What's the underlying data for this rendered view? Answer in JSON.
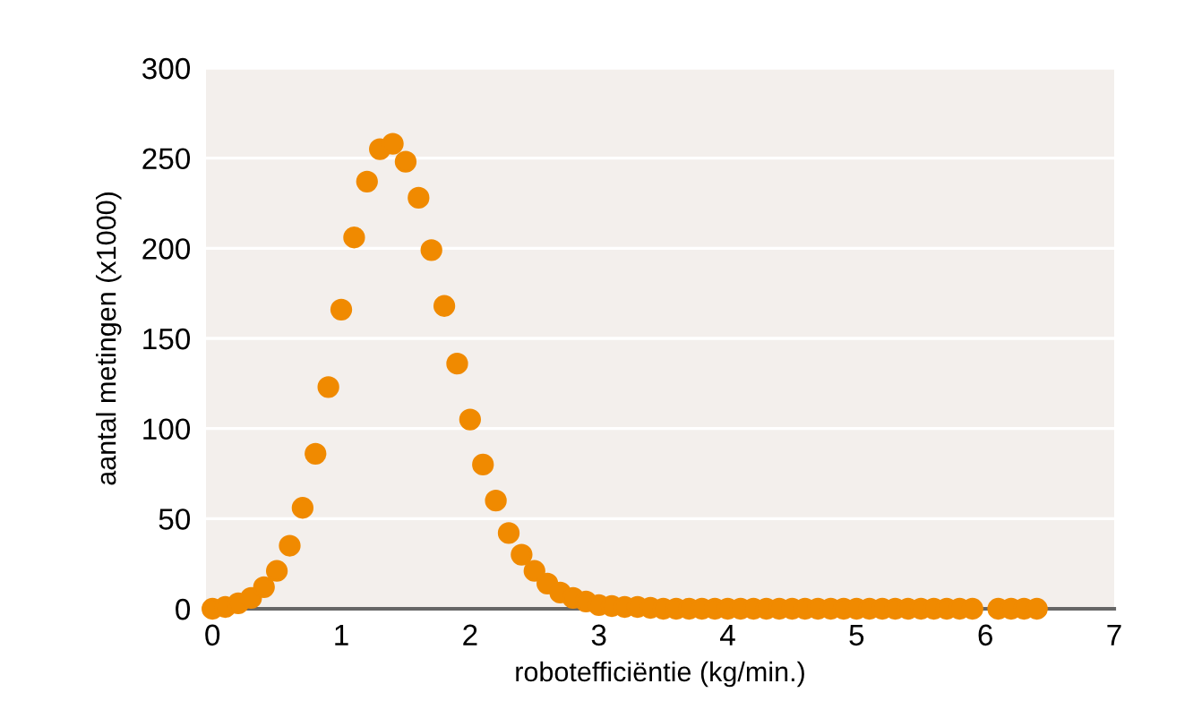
{
  "chart_data": {
    "type": "scatter",
    "xlabel": "robotefficiëntie (kg/min.)",
    "ylabel": "aantal metingen (x1000)",
    "x": [
      0,
      0.1,
      0.2,
      0.3,
      0.4,
      0.5,
      0.6,
      0.7,
      0.8,
      0.9,
      1.0,
      1.1,
      1.2,
      1.3,
      1.4,
      1.5,
      1.6,
      1.7,
      1.8,
      1.9,
      2.0,
      2.1,
      2.2,
      2.3,
      2.4,
      2.5,
      2.6,
      2.7,
      2.8,
      2.9,
      3.0,
      3.1,
      3.2,
      3.3,
      3.4,
      3.5,
      3.6,
      3.7,
      3.8,
      3.9,
      4.0,
      4.1,
      4.2,
      4.3,
      4.4,
      4.5,
      4.6,
      4.7,
      4.8,
      4.9,
      5.0,
      5.1,
      5.2,
      5.3,
      5.4,
      5.5,
      5.6,
      5.7,
      5.8,
      5.9,
      6.1,
      6.2,
      6.3,
      6.4
    ],
    "series": [
      {
        "color": "#f08a00",
        "values": [
          0,
          1,
          3,
          6,
          12,
          21,
          35,
          56,
          86,
          123,
          166,
          206,
          237,
          255,
          258,
          248,
          228,
          199,
          168,
          136,
          105,
          80,
          60,
          42,
          30,
          21,
          14,
          9,
          6,
          4,
          2,
          1.5,
          1,
          1,
          0.5,
          0,
          0,
          0,
          0,
          0,
          0,
          0,
          0,
          0,
          0,
          0,
          0,
          0,
          0,
          0,
          0,
          0,
          0,
          0,
          0,
          0,
          0,
          0,
          0,
          0,
          0,
          0,
          0,
          0
        ]
      }
    ],
    "xlim": [
      -0.05,
      7
    ],
    "ylim": [
      0,
      300
    ],
    "xticks": [
      0,
      1,
      2,
      3,
      4,
      5,
      6,
      7
    ],
    "yticks": [
      0,
      50,
      100,
      150,
      200,
      250,
      300
    ],
    "grid": "y",
    "marker": "circle",
    "legend": false
  }
}
